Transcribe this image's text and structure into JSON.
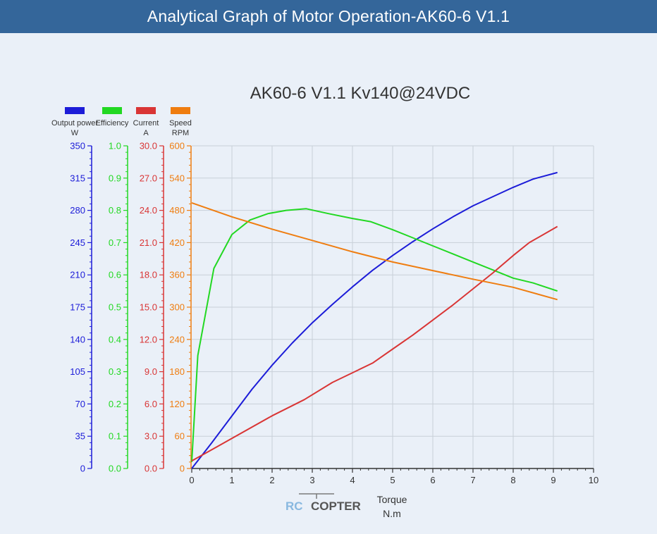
{
  "header": {
    "title": "Analytical Graph of Motor Operation-AK60-6 V1.1"
  },
  "watermark": {
    "text_rc": "RC",
    "text_copter": "COPTER"
  },
  "chart_data": {
    "type": "line",
    "title": "AK60-6 V1.1 Kv140@24VDC",
    "xlabel": [
      "Torque",
      "N.m"
    ],
    "xlim": [
      0,
      10
    ],
    "x_ticks": [
      0,
      1,
      2,
      3,
      4,
      5,
      6,
      7,
      8,
      9,
      10
    ],
    "grid": true,
    "axes": [
      {
        "id": "power",
        "label": [
          "Output power",
          "W"
        ],
        "color": "#1c1cd8",
        "lim": [
          0,
          350
        ],
        "ticks": [
          "0",
          "35",
          "70",
          "105",
          "140",
          "175",
          "210",
          "245",
          "280",
          "315",
          "350"
        ]
      },
      {
        "id": "efficiency",
        "label": [
          "Efficiency"
        ],
        "color": "#22d822",
        "lim": [
          0,
          1.0
        ],
        "ticks": [
          "0.0",
          "0.1",
          "0.2",
          "0.3",
          "0.4",
          "0.5",
          "0.6",
          "0.7",
          "0.8",
          "0.9",
          "1.0"
        ]
      },
      {
        "id": "current",
        "label": [
          "Current",
          "A"
        ],
        "color": "#d93535",
        "lim": [
          0,
          30
        ],
        "ticks": [
          "0.0",
          "3.0",
          "6.0",
          "9.0",
          "12.0",
          "15.0",
          "18.0",
          "21.0",
          "24.0",
          "27.0",
          "30.0"
        ]
      },
      {
        "id": "speed",
        "label": [
          "Speed",
          "RPM"
        ],
        "color": "#ef7d10",
        "lim": [
          0,
          600
        ],
        "ticks": [
          "0",
          "60",
          "120",
          "180",
          "240",
          "300",
          "360",
          "420",
          "480",
          "540",
          "600"
        ]
      }
    ],
    "series": [
      {
        "name": "Output power",
        "axis": "power",
        "color": "#1c1cd8",
        "x": [
          0,
          0.5,
          1.0,
          1.5,
          2.0,
          2.5,
          3.0,
          3.5,
          4.0,
          4.5,
          5.0,
          5.5,
          6.0,
          6.5,
          7.0,
          7.5,
          8.0,
          8.5,
          9.1
        ],
        "y": [
          0,
          28,
          57,
          86,
          112,
          136,
          158,
          178,
          197,
          215,
          231,
          246,
          260,
          273,
          285,
          295,
          305,
          314,
          321
        ]
      },
      {
        "name": "Efficiency",
        "axis": "efficiency",
        "color": "#22d822",
        "x": [
          0,
          0.15,
          0.55,
          1.0,
          1.45,
          1.9,
          2.35,
          2.85,
          3.4,
          4.0,
          4.45,
          5.0,
          5.5,
          6.0,
          6.5,
          7.0,
          7.5,
          8.0,
          8.5,
          9.1
        ],
        "y": [
          0.02,
          0.35,
          0.62,
          0.725,
          0.77,
          0.79,
          0.8,
          0.805,
          0.79,
          0.775,
          0.765,
          0.74,
          0.715,
          0.69,
          0.665,
          0.64,
          0.615,
          0.59,
          0.575,
          0.55
        ]
      },
      {
        "name": "Current",
        "axis": "current",
        "color": "#d93535",
        "x": [
          0,
          1.0,
          2.0,
          2.8,
          3.5,
          4.5,
          5.0,
          5.5,
          6.0,
          6.5,
          7.0,
          7.5,
          8.0,
          8.4,
          9.1
        ],
        "y": [
          0.7,
          2.8,
          4.9,
          6.4,
          8.0,
          9.8,
          11.1,
          12.4,
          13.8,
          15.2,
          16.7,
          18.2,
          19.8,
          21.0,
          22.5
        ]
      },
      {
        "name": "Speed",
        "axis": "speed",
        "color": "#ef7d10",
        "x": [
          0,
          1,
          2,
          3,
          4,
          5,
          6,
          7,
          8,
          9.1
        ],
        "y": [
          494,
          468,
          445,
          424,
          403,
          384,
          368,
          352,
          337,
          314
        ]
      }
    ]
  }
}
